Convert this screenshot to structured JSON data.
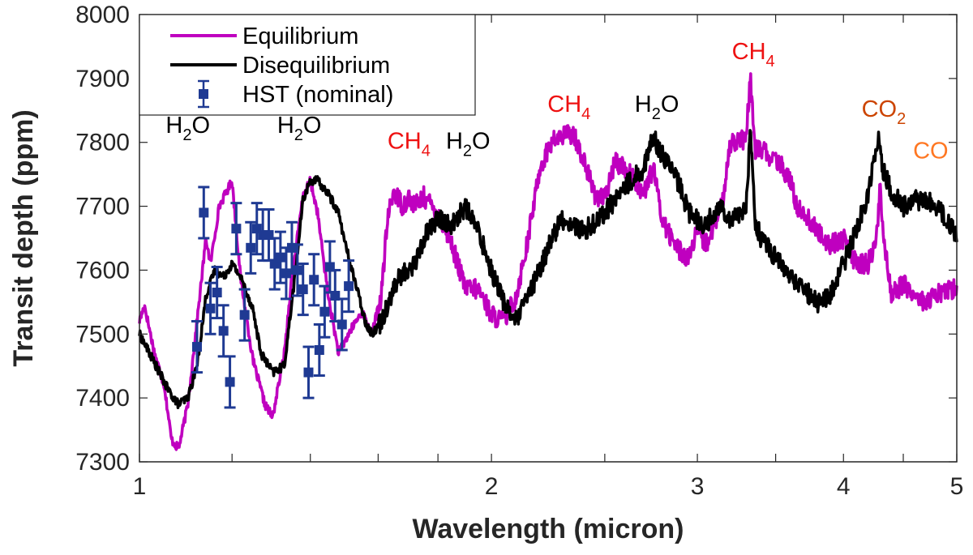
{
  "chart_data": {
    "type": "line",
    "xscale": "log",
    "xlabel": "Wavelength (micron)",
    "ylabel": "Transit depth (ppm)",
    "xlim": [
      1,
      5
    ],
    "ylim": [
      7300,
      8000
    ],
    "xticks": [
      1,
      1.2,
      1.4,
      1.6,
      1.8,
      2,
      2.5,
      3,
      3.5,
      4,
      4.5,
      5
    ],
    "xtick_labels": [
      "1",
      "2",
      "3",
      "4",
      "5"
    ],
    "xtick_label_values": [
      1,
      2,
      3,
      4,
      5
    ],
    "yticks": [
      7300,
      7400,
      7500,
      7600,
      7700,
      7800,
      7900,
      8000
    ],
    "ytick_labels": [
      "7300",
      "7400",
      "7500",
      "7600",
      "7700",
      "7800",
      "7900",
      "8000"
    ],
    "legend": {
      "placement": "top-left",
      "entries": [
        {
          "name": "Equilibrium",
          "color": "#bf00bf"
        },
        {
          "name": "Disequilibrium",
          "color": "#000000"
        },
        {
          "name": "HST (nominal)",
          "color": "#1f3a93"
        }
      ]
    },
    "series": [
      {
        "name": "Equilibrium",
        "color": "#bf00bf",
        "x": [
          1.0,
          1.01,
          1.03,
          1.05,
          1.065,
          1.08,
          1.1,
          1.12,
          1.14,
          1.15,
          1.17,
          1.2,
          1.22,
          1.25,
          1.28,
          1.3,
          1.33,
          1.35,
          1.38,
          1.4,
          1.42,
          1.45,
          1.48,
          1.52,
          1.55,
          1.58,
          1.61,
          1.63,
          1.65,
          1.68,
          1.7,
          1.72,
          1.75,
          1.78,
          1.8,
          1.85,
          1.9,
          1.95,
          2.0,
          2.05,
          2.1,
          2.15,
          2.2,
          2.25,
          2.3,
          2.35,
          2.4,
          2.45,
          2.5,
          2.55,
          2.6,
          2.65,
          2.7,
          2.75,
          2.8,
          2.85,
          2.9,
          2.95,
          3.0,
          3.05,
          3.1,
          3.15,
          3.2,
          3.25,
          3.3,
          3.33,
          3.36,
          3.4,
          3.45,
          3.5,
          3.55,
          3.6,
          3.65,
          3.7,
          3.8,
          3.9,
          4.0,
          4.1,
          4.2,
          4.27,
          4.3,
          4.33,
          4.4,
          4.5,
          4.6,
          4.7,
          4.8,
          4.9,
          5.0
        ],
        "values": [
          7520,
          7545,
          7470,
          7420,
          7335,
          7320,
          7390,
          7520,
          7650,
          7610,
          7700,
          7740,
          7590,
          7460,
          7390,
          7370,
          7470,
          7590,
          7715,
          7740,
          7690,
          7560,
          7470,
          7510,
          7535,
          7500,
          7560,
          7680,
          7725,
          7700,
          7715,
          7700,
          7715,
          7700,
          7690,
          7640,
          7570,
          7570,
          7530,
          7520,
          7560,
          7650,
          7760,
          7800,
          7810,
          7815,
          7770,
          7720,
          7710,
          7770,
          7760,
          7740,
          7720,
          7760,
          7680,
          7650,
          7630,
          7620,
          7660,
          7640,
          7670,
          7700,
          7800,
          7805,
          7800,
          7900,
          7790,
          7790,
          7780,
          7770,
          7760,
          7740,
          7700,
          7690,
          7660,
          7640,
          7650,
          7610,
          7610,
          7650,
          7730,
          7650,
          7560,
          7580,
          7560,
          7550,
          7560,
          7570,
          7570
        ]
      },
      {
        "name": "Disequilibrium",
        "color": "#000000",
        "x": [
          1.0,
          1.02,
          1.04,
          1.06,
          1.08,
          1.1,
          1.12,
          1.14,
          1.16,
          1.18,
          1.2,
          1.22,
          1.25,
          1.27,
          1.3,
          1.33,
          1.36,
          1.38,
          1.4,
          1.42,
          1.45,
          1.48,
          1.5,
          1.53,
          1.56,
          1.58,
          1.61,
          1.64,
          1.67,
          1.7,
          1.73,
          1.76,
          1.8,
          1.85,
          1.9,
          1.95,
          2.0,
          2.05,
          2.1,
          2.15,
          2.2,
          2.25,
          2.3,
          2.4,
          2.5,
          2.6,
          2.7,
          2.75,
          2.8,
          2.85,
          2.9,
          2.95,
          3.0,
          3.05,
          3.1,
          3.15,
          3.2,
          3.25,
          3.3,
          3.33,
          3.36,
          3.4,
          3.5,
          3.6,
          3.7,
          3.8,
          3.9,
          4.0,
          4.1,
          4.2,
          4.25,
          4.28,
          4.32,
          4.4,
          4.5,
          4.6,
          4.7,
          4.8,
          4.9,
          5.0
        ],
        "values": [
          7500,
          7470,
          7440,
          7410,
          7390,
          7400,
          7450,
          7560,
          7600,
          7590,
          7610,
          7590,
          7540,
          7470,
          7440,
          7450,
          7600,
          7710,
          7740,
          7740,
          7720,
          7690,
          7640,
          7580,
          7520,
          7500,
          7520,
          7560,
          7590,
          7600,
          7620,
          7660,
          7680,
          7670,
          7700,
          7660,
          7600,
          7550,
          7520,
          7560,
          7600,
          7650,
          7680,
          7660,
          7690,
          7730,
          7760,
          7810,
          7780,
          7760,
          7730,
          7690,
          7680,
          7670,
          7690,
          7700,
          7680,
          7690,
          7690,
          7820,
          7680,
          7650,
          7620,
          7590,
          7570,
          7550,
          7560,
          7610,
          7660,
          7720,
          7780,
          7810,
          7760,
          7720,
          7700,
          7710,
          7710,
          7700,
          7680,
          7650
        ]
      },
      {
        "name": "HST (nominal)",
        "color": "#1f3a93",
        "type": "errorbar",
        "x": [
          1.12,
          1.135,
          1.15,
          1.165,
          1.18,
          1.195,
          1.21,
          1.23,
          1.245,
          1.26,
          1.275,
          1.29,
          1.305,
          1.32,
          1.335,
          1.35,
          1.365,
          1.38,
          1.395,
          1.41,
          1.425,
          1.44,
          1.455,
          1.47,
          1.49,
          1.51
        ],
        "values": [
          7480,
          7690,
          7540,
          7565,
          7505,
          7425,
          7665,
          7530,
          7635,
          7665,
          7655,
          7655,
          7610,
          7620,
          7595,
          7635,
          7600,
          7570,
          7440,
          7585,
          7475,
          7535,
          7605,
          7560,
          7515,
          7575
        ],
        "errors": [
          40,
          40,
          40,
          40,
          40,
          40,
          40,
          40,
          40,
          40,
          40,
          40,
          40,
          40,
          40,
          40,
          40,
          40,
          40,
          40,
          40,
          40,
          40,
          40,
          40,
          40
        ]
      }
    ],
    "annotations": [
      {
        "base": "H",
        "sub": "2",
        "tail": "O",
        "x": 1.1,
        "y": 7815,
        "color": "#000000"
      },
      {
        "base": "H",
        "sub": "2",
        "tail": "O",
        "x": 1.37,
        "y": 7815,
        "color": "#000000"
      },
      {
        "base": "CH",
        "sub": "4",
        "tail": "",
        "x": 1.7,
        "y": 7790,
        "color": "#ee1111"
      },
      {
        "base": "H",
        "sub": "2",
        "tail": "O",
        "x": 1.91,
        "y": 7790,
        "color": "#000000"
      },
      {
        "base": "CH",
        "sub": "4",
        "tail": "",
        "x": 2.33,
        "y": 7848,
        "color": "#ee1111"
      },
      {
        "base": "H",
        "sub": "2",
        "tail": "O",
        "x": 2.77,
        "y": 7848,
        "color": "#000000"
      },
      {
        "base": "CH",
        "sub": "4",
        "tail": "",
        "x": 3.35,
        "y": 7930,
        "color": "#ee1111"
      },
      {
        "base": "CO",
        "sub": "2",
        "tail": "",
        "x": 4.33,
        "y": 7840,
        "color": "#cc4400"
      },
      {
        "base": "CO",
        "sub": "",
        "tail": "",
        "x": 4.75,
        "y": 7775,
        "color": "#ff7722"
      }
    ]
  }
}
